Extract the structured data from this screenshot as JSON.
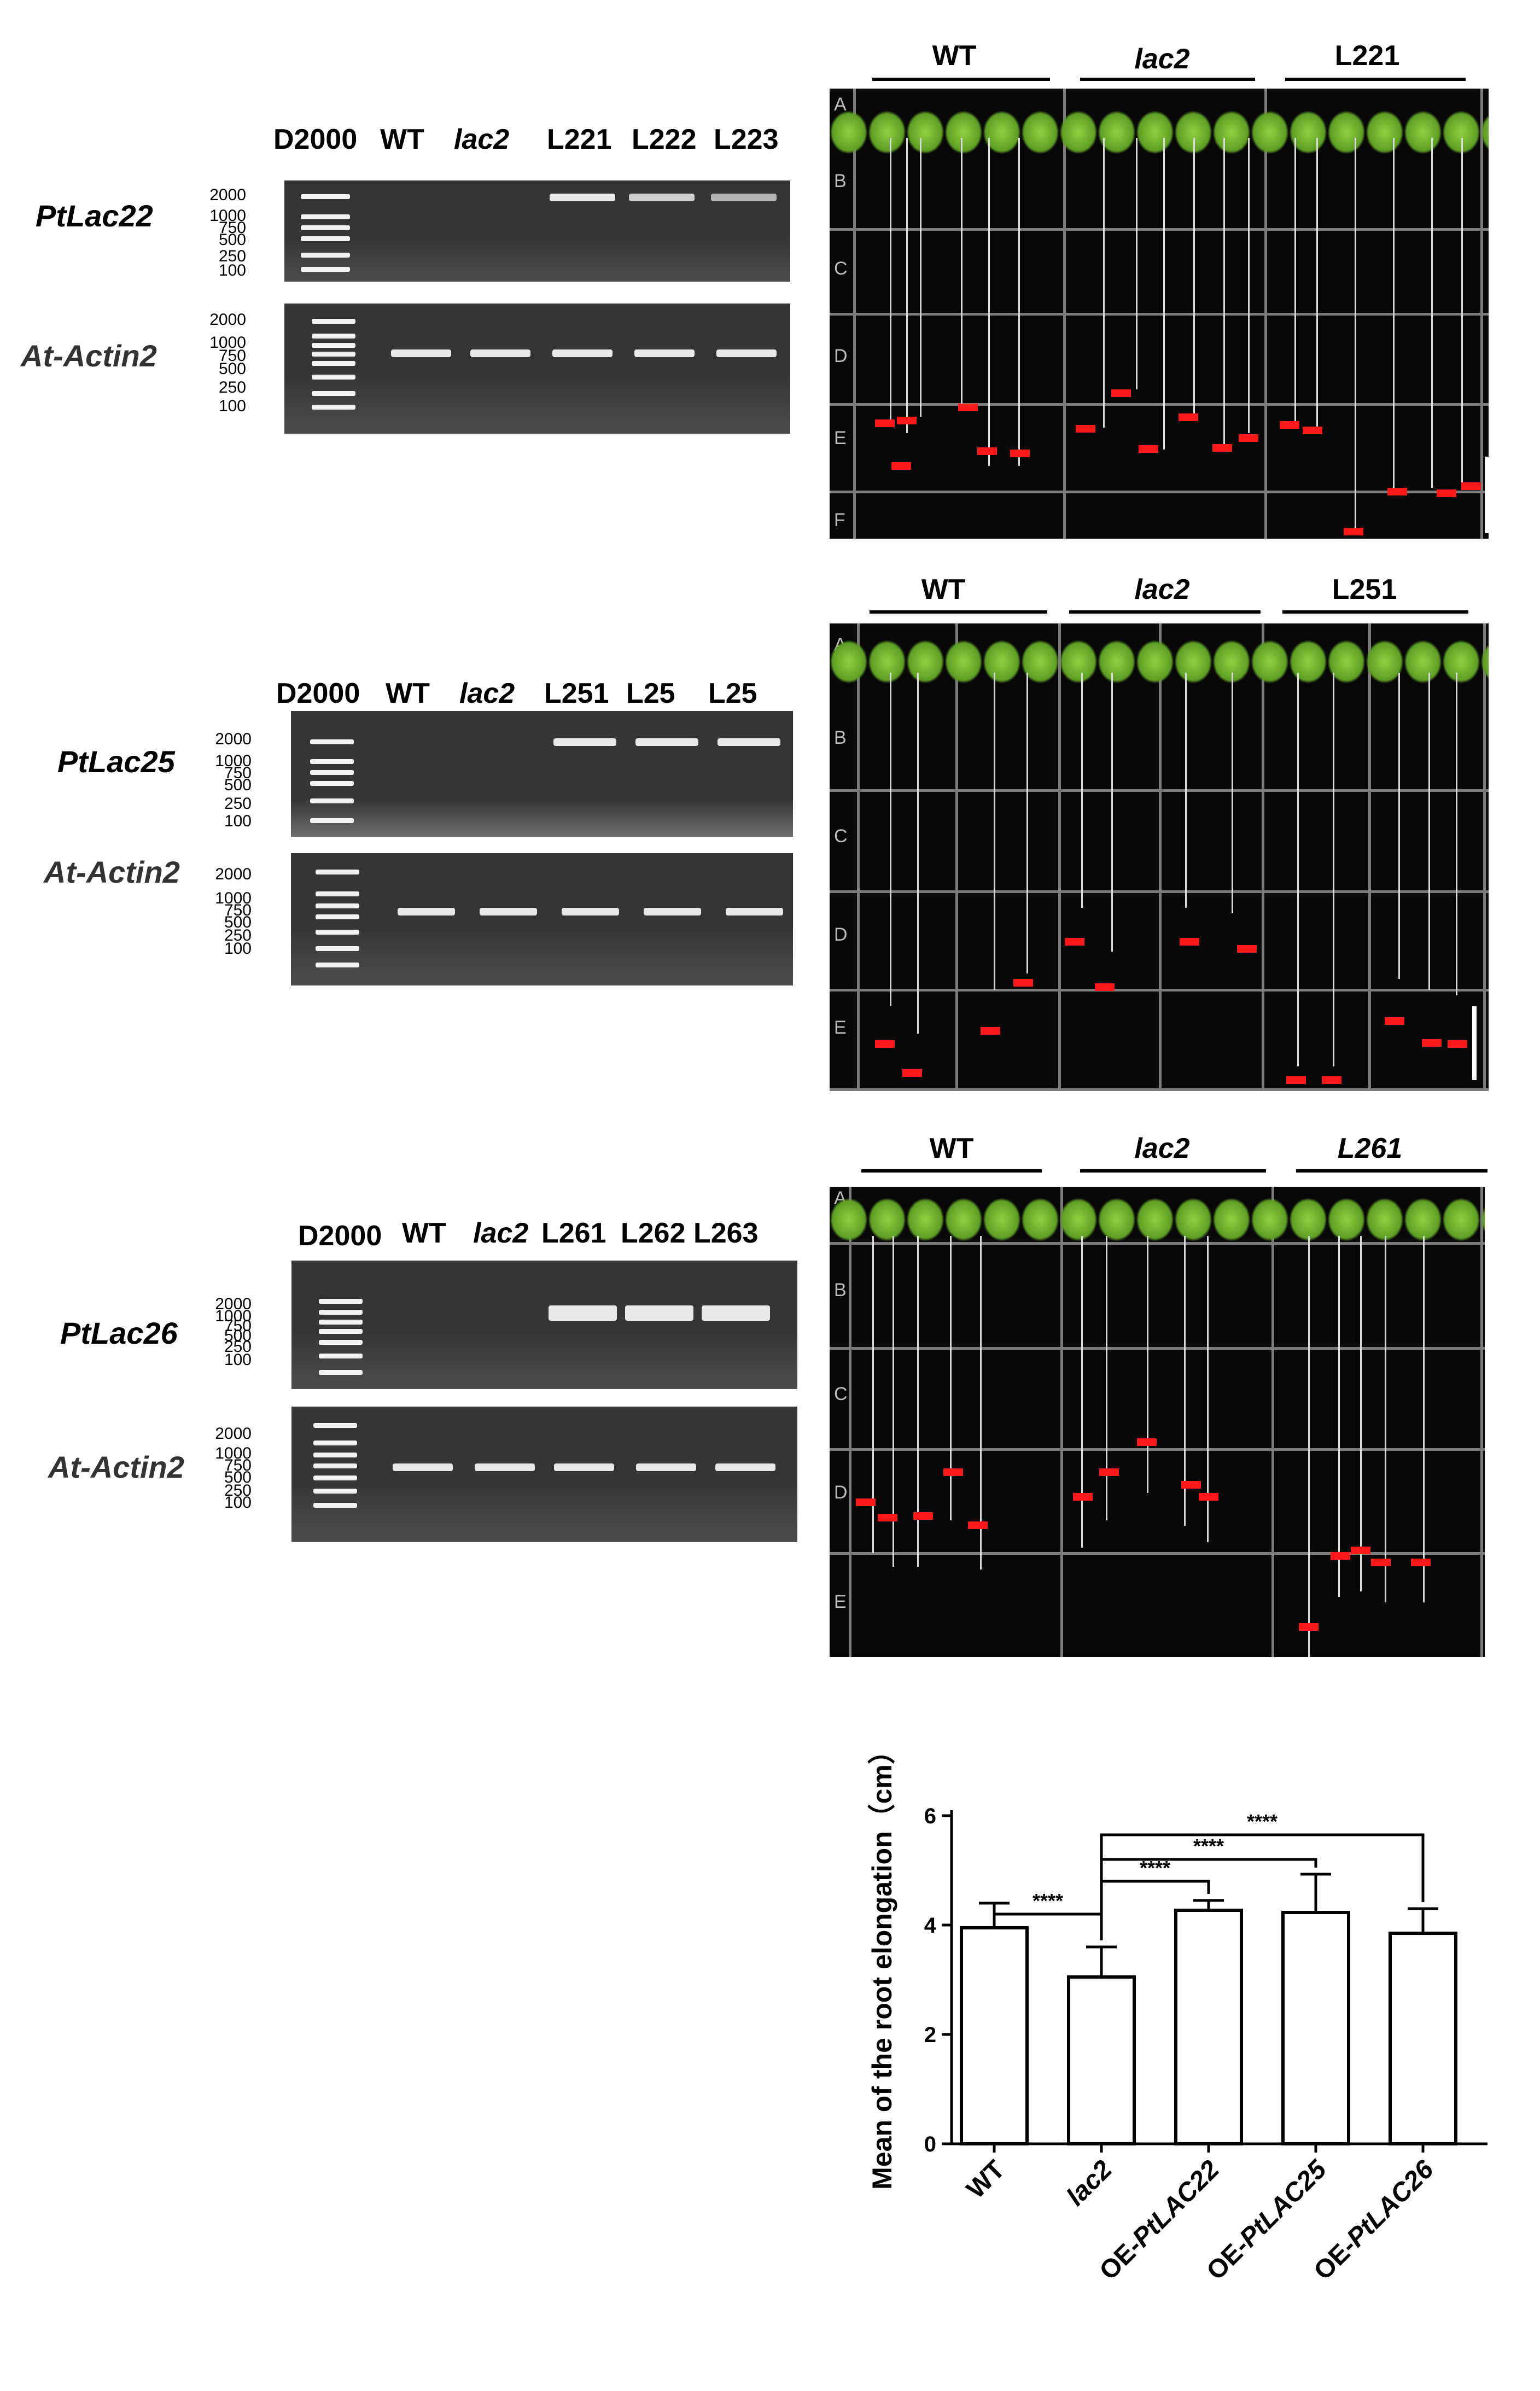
{
  "gels": [
    {
      "gene": "PtLac22",
      "control": "At-Actin2",
      "lanes": [
        "D2000",
        "WT",
        "lac2",
        "L221",
        "L222",
        "L223"
      ],
      "ladder_sizes_top": [
        "2000",
        "1000",
        "750",
        "500",
        "250",
        "100"
      ],
      "ladder_sizes_bottom": [
        "2000",
        "1000",
        "750",
        "500",
        "250",
        "100"
      ]
    },
    {
      "gene": "PtLac25",
      "control": "At-Actin2",
      "lanes": [
        "D2000",
        "WT",
        "lac2",
        "L251",
        "L25",
        "L25"
      ],
      "ladder_sizes_top": [
        "2000",
        "1000",
        "750",
        "500",
        "250",
        "100"
      ],
      "ladder_sizes_bottom": [
        "2000",
        "1000",
        "750",
        "500",
        "250",
        "100"
      ]
    },
    {
      "gene": "PtLac26",
      "control": "At-Actin2",
      "lanes": [
        "D2000",
        "WT",
        "lac2",
        "L261",
        "L262",
        "L263"
      ],
      "ladder_sizes_top": [
        "2000",
        "1000",
        "750",
        "500",
        "250",
        "100"
      ],
      "ladder_sizes_bottom": [
        "2000",
        "1000",
        "750",
        "500",
        "250",
        "100"
      ]
    }
  ],
  "photos": [
    {
      "groups": [
        "WT",
        "lac2",
        "L221"
      ],
      "row_labels": [
        "A",
        "B",
        "C",
        "D",
        "E",
        "F"
      ]
    },
    {
      "groups": [
        "WT",
        "lac2",
        "L251"
      ],
      "row_labels": [
        "A",
        "B",
        "C",
        "D",
        "E"
      ]
    },
    {
      "groups": [
        "WT",
        "lac2",
        "L261"
      ],
      "row_labels": [
        "A",
        "B",
        "C",
        "D",
        "E"
      ]
    }
  ],
  "chart_data": {
    "type": "bar",
    "title": "",
    "xlabel": "",
    "ylabel": "Mean of the root elongation（cm）",
    "categories": [
      "WT",
      "lac2",
      "OE-PtLAC22",
      "OE-PtLAC25",
      "OE-PtLAC26"
    ],
    "values": [
      3.95,
      3.05,
      4.27,
      4.23,
      3.85
    ],
    "errors": [
      0.45,
      0.55,
      0.18,
      0.7,
      0.45
    ],
    "ylim": [
      0,
      6
    ],
    "yticks": [
      0,
      2,
      4,
      6
    ],
    "significance": [
      {
        "from": "WT",
        "to": "lac2",
        "label": "****"
      },
      {
        "from": "lac2",
        "to": "OE-PtLAC22",
        "label": "****"
      },
      {
        "from": "lac2",
        "to": "OE-PtLAC25",
        "label": "****"
      },
      {
        "from": "lac2",
        "to": "OE-PtLAC26",
        "label": "****"
      }
    ],
    "grid": false,
    "bar_color": "#ffffff",
    "edge_color": "#000000"
  }
}
